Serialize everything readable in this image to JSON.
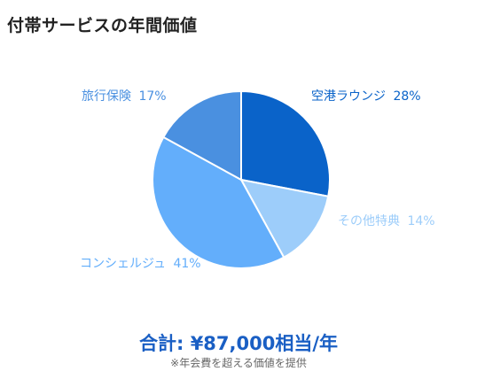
{
  "title": "付帯サービスの年間価値",
  "chart_data": {
    "type": "pie",
    "title": "付帯サービスの年間価値",
    "slices": [
      {
        "label": "空港ラウンジ",
        "percent_text": "28%",
        "value": 28,
        "color": "#0a63c9"
      },
      {
        "label": "その他特典",
        "percent_text": "14%",
        "value": 14,
        "color": "#9dcdfa"
      },
      {
        "label": "コンシェルジュ",
        "percent_text": "41%",
        "value": 41,
        "color": "#63aefb"
      },
      {
        "label": "旅行保険",
        "percent_text": "17%",
        "value": 17,
        "color": "#4a90e0"
      }
    ]
  },
  "summary": {
    "total": "合計: ¥87,000相当/年",
    "note": "※年会費を超える価値を提供",
    "total_color": "#1a5fc4"
  }
}
